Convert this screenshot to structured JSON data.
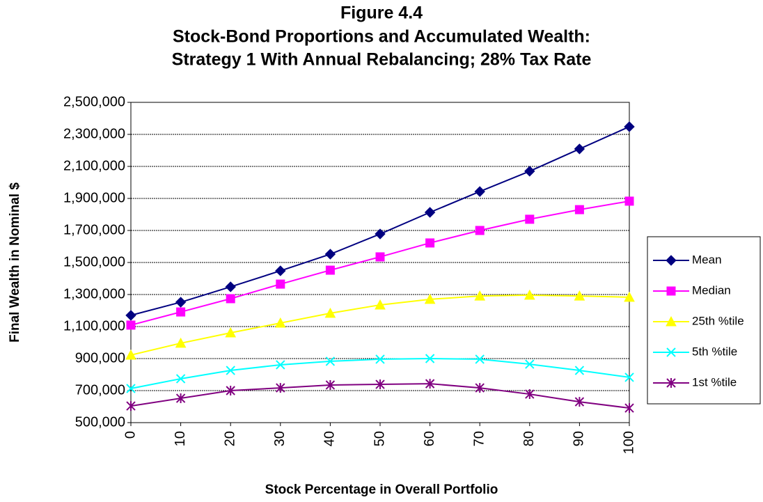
{
  "chart_data": {
    "type": "line",
    "title": "Figure 4.4",
    "subtitle": [
      "Stock-Bond Proportions and Accumulated Wealth:",
      "Strategy 1 With Annual Rebalancing; 28% Tax Rate"
    ],
    "x_label": "Stock Percentage in Overall Portfolio",
    "y_label": "Final Wealth in Nominal $",
    "x": [
      0,
      10,
      20,
      30,
      40,
      50,
      60,
      70,
      80,
      90,
      100
    ],
    "xlim": [
      0,
      100
    ],
    "xticks": [
      0,
      10,
      20,
      30,
      40,
      50,
      60,
      70,
      80,
      90,
      100
    ],
    "ylim": [
      500000,
      2500000
    ],
    "yticks": [
      {
        "value": 500000,
        "label": "500,000"
      },
      {
        "value": 700000,
        "label": "700,000"
      },
      {
        "value": 900000,
        "label": "900,000"
      },
      {
        "value": 1100000,
        "label": "1,100,000"
      },
      {
        "value": 1300000,
        "label": "1,300,000"
      },
      {
        "value": 1500000,
        "label": "1,500,000"
      },
      {
        "value": 1700000,
        "label": "1,700,000"
      },
      {
        "value": 1900000,
        "label": "1,900,000"
      },
      {
        "value": 2100000,
        "label": "2,100,000"
      },
      {
        "value": 2300000,
        "label": "2,300,000"
      },
      {
        "value": 2500000,
        "label": "2,500,000"
      }
    ],
    "grid": true,
    "legend": "right",
    "series": [
      {
        "name": "Mean",
        "color": "#000080",
        "marker": "diamond",
        "values": [
          1170000,
          1252000,
          1348000,
          1448000,
          1552000,
          1678000,
          1813000,
          1943000,
          2070000,
          2209000,
          2348000
        ]
      },
      {
        "name": "Median",
        "color": "#ff00ff",
        "marker": "square",
        "values": [
          1109000,
          1191000,
          1274000,
          1365000,
          1452000,
          1535000,
          1622000,
          1700000,
          1770000,
          1830000,
          1883000
        ]
      },
      {
        "name": "25th %tile",
        "color": "#ffff00",
        "marker": "triangle",
        "values": [
          922000,
          996000,
          1061000,
          1122000,
          1183000,
          1235000,
          1270000,
          1291000,
          1296000,
          1291000,
          1283000
        ]
      },
      {
        "name": "5th %tile",
        "color": "#00ffff",
        "marker": "x",
        "values": [
          713000,
          774000,
          826000,
          861000,
          883000,
          896000,
          900000,
          896000,
          865000,
          826000,
          783000
        ]
      },
      {
        "name": "1st %tile",
        "color": "#800080",
        "marker": "star",
        "values": [
          604000,
          652000,
          700000,
          717000,
          735000,
          739000,
          743000,
          717000,
          678000,
          630000,
          591000
        ]
      }
    ]
  }
}
